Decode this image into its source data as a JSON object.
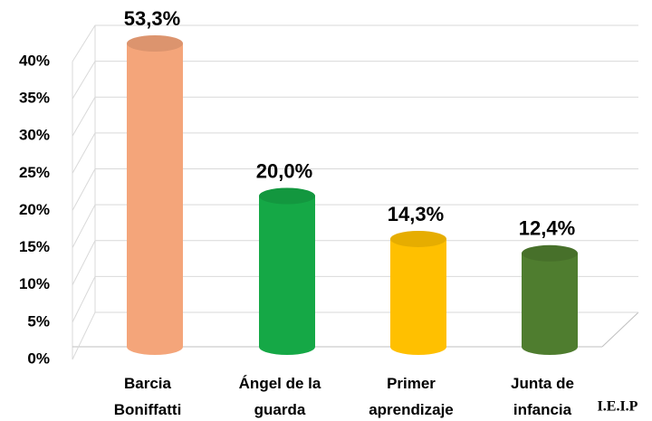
{
  "chart_data": {
    "type": "bar",
    "categories": [
      "Barcia\nBoniffatti",
      "Ángel de la\nguarda",
      "Primer\naprendizaje",
      "Junta de\ninfancia"
    ],
    "values": [
      53.3,
      20.0,
      14.3,
      12.4
    ],
    "value_labels": [
      "53,3%",
      "20,0%",
      "14,3%",
      "12,4%"
    ],
    "colors": [
      "#f4a57a",
      "#15a846",
      "#ffc000",
      "#4f7d2f"
    ],
    "ylim": [
      0,
      40
    ],
    "yticks": [
      {
        "value": 0,
        "label": "0%"
      },
      {
        "value": 5,
        "label": "5%"
      },
      {
        "value": 10,
        "label": "10%"
      },
      {
        "value": 15,
        "label": "15%"
      },
      {
        "value": 20,
        "label": "20%"
      },
      {
        "value": 25,
        "label": "25%"
      },
      {
        "value": 30,
        "label": "30%"
      },
      {
        "value": 35,
        "label": "35%"
      },
      {
        "value": 40,
        "label": "40%"
      }
    ],
    "grid": true,
    "annotation": "I.E.I.P"
  }
}
